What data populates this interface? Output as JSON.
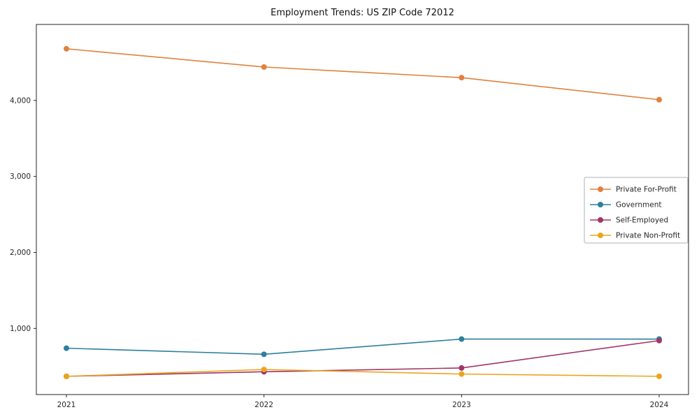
{
  "chart_data": {
    "type": "line",
    "title": "Employment Trends: US ZIP Code 72012",
    "xlabel": "",
    "ylabel": "",
    "x_tick_labels": [
      "2021",
      "2022",
      "2023",
      "2024"
    ],
    "x": [
      2021,
      2022,
      2023,
      2024
    ],
    "y_ticks": [
      1000,
      2000,
      3000,
      4000
    ],
    "y_tick_labels": [
      "1,000",
      "2,000",
      "3,000",
      "4,000"
    ],
    "ylim": [
      130,
      5000
    ],
    "grid": false,
    "legend_position": "center right",
    "marker": "circle",
    "series": [
      {
        "name": "Private For-Profit",
        "color": "#e0813d",
        "values": [
          4680,
          4440,
          4300,
          4010
        ]
      },
      {
        "name": "Government",
        "color": "#2d7f9d",
        "values": [
          740,
          660,
          860,
          860
        ]
      },
      {
        "name": "Self-Employed",
        "color": "#a03668",
        "values": [
          370,
          430,
          480,
          840
        ]
      },
      {
        "name": "Private Non-Profit",
        "color": "#eca41e",
        "values": [
          370,
          460,
          400,
          370
        ]
      }
    ],
    "axis_color": "#262626",
    "legend_border_color": "#b0b0b0"
  }
}
